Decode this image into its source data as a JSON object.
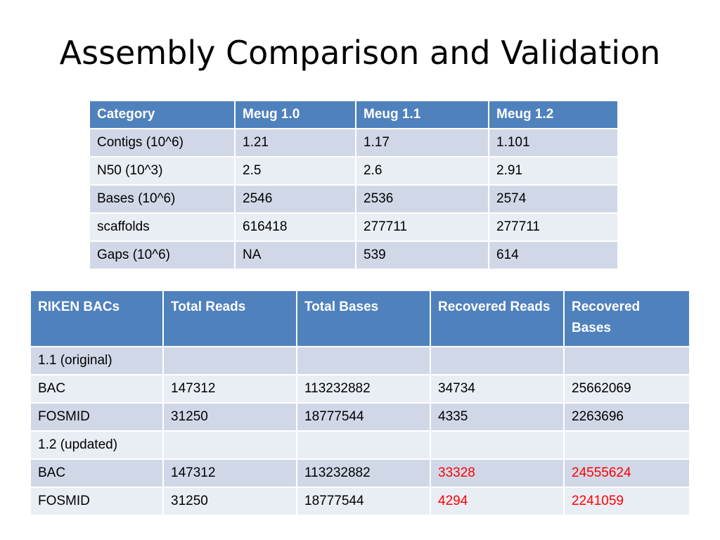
{
  "title": "Assembly Comparison and Validation",
  "table1": {
    "headers": [
      "Category",
      "Meug 1.0",
      "Meug 1.1",
      "Meug 1.2"
    ],
    "rows": [
      [
        "Contigs (10^6)",
        "1.21",
        "1.17",
        "1.101"
      ],
      [
        "N50 (10^3)",
        "2.5",
        "2.6",
        "2.91"
      ],
      [
        "Bases (10^6)",
        "2546",
        "2536",
        "2574"
      ],
      [
        "scaffolds",
        "616418",
        "277711",
        "277711"
      ],
      [
        "Gaps (10^6)",
        "NA",
        "539",
        "614"
      ]
    ]
  },
  "table2": {
    "headers": [
      "RIKEN BACs",
      "Total Reads",
      "Total Bases",
      "Recovered Reads",
      "Recovered Bases"
    ],
    "rows": [
      [
        "1.1 (original)",
        "",
        "",
        "",
        ""
      ],
      [
        "BAC",
        "147312",
        "113232882",
        "34734",
        "25662069"
      ],
      [
        "FOSMID",
        "31250",
        "18777544",
        "4335",
        "2263696"
      ],
      [
        "1.2 (updated)",
        "",
        "",
        "",
        ""
      ],
      [
        "BAC",
        "147312",
        "113232882",
        "33328",
        "24555624"
      ],
      [
        "FOSMID",
        "31250",
        "18777544",
        "4294",
        "2241059"
      ]
    ]
  },
  "colors": {
    "header_bg": "#4f81bd",
    "row_odd_bg": "#d0d8e8",
    "row_even_bg": "#e9edf4",
    "highlight_text": "#ff0000"
  }
}
